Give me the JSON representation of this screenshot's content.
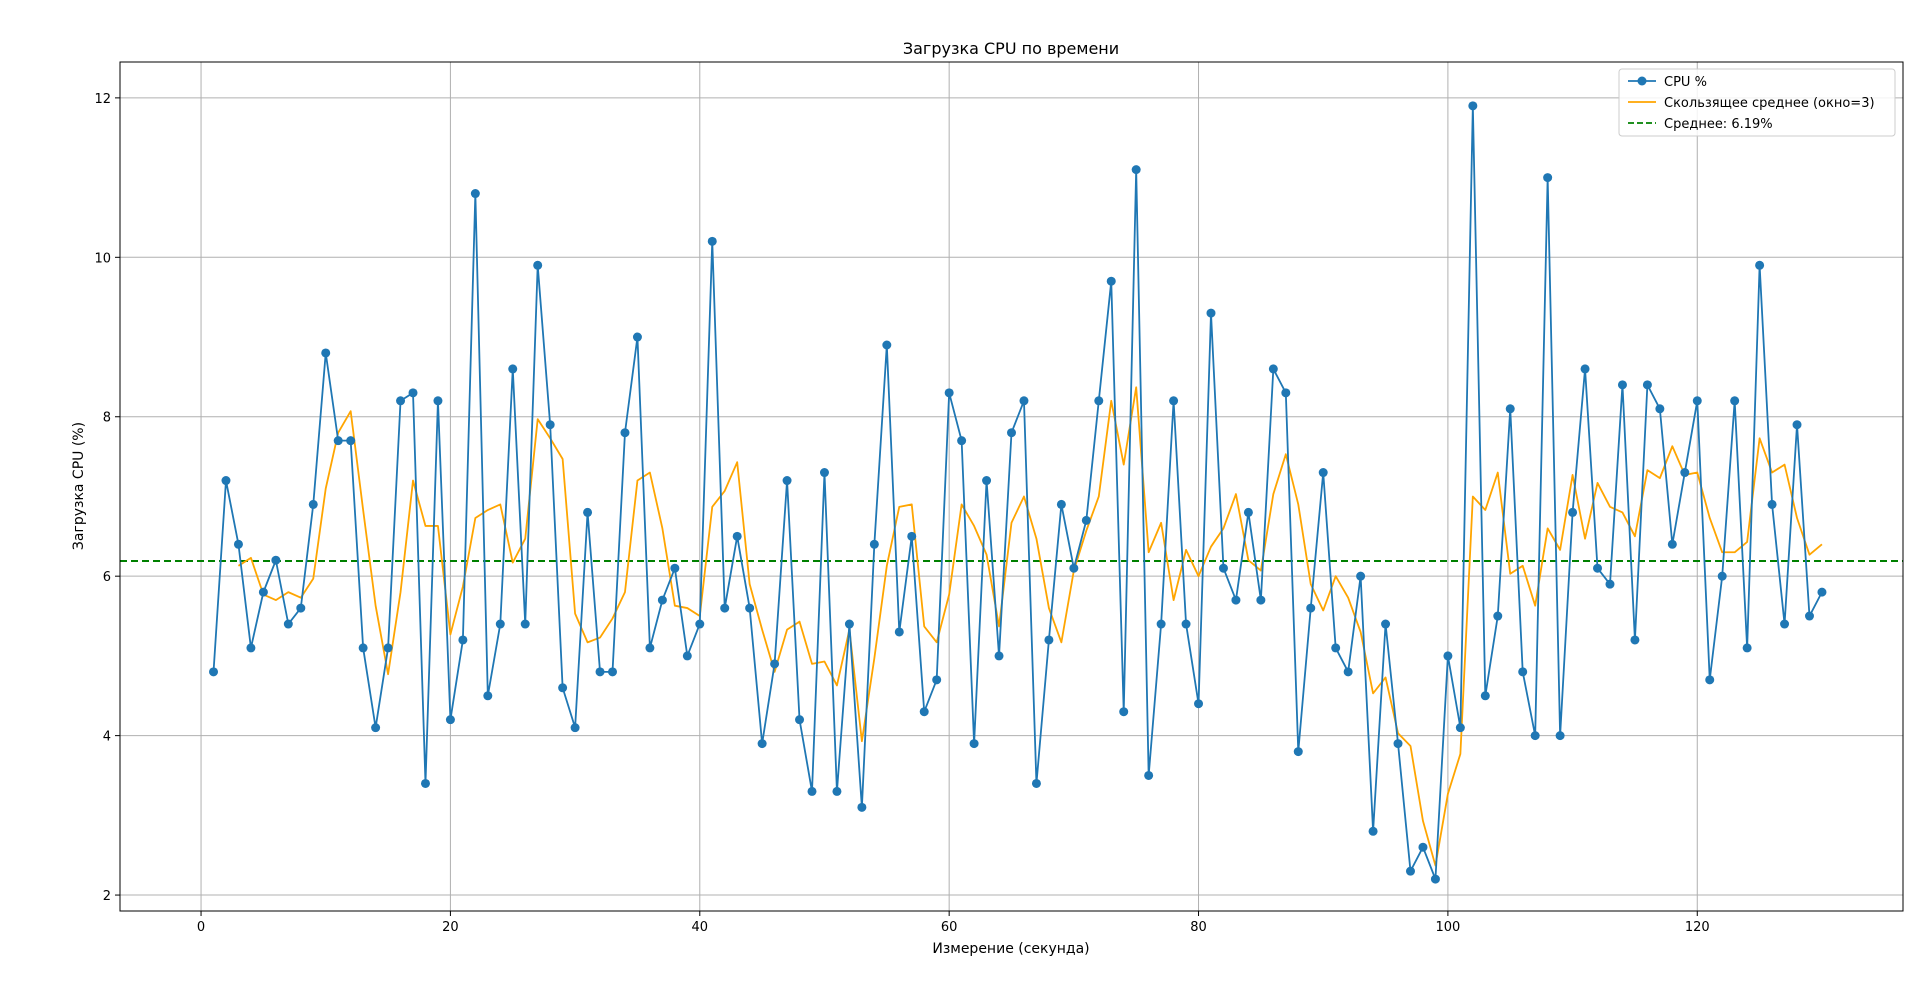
{
  "chart_data": {
    "type": "line",
    "title": "Загрузка CPU по времени",
    "xlabel": "Измерение (секунда)",
    "ylabel": "Загрузка CPU (%)",
    "xlim": [
      -6.5,
      136.5
    ],
    "ylim": [
      1.8,
      12.45
    ],
    "xticks": [
      0,
      20,
      40,
      60,
      80,
      100,
      120
    ],
    "yticks": [
      2,
      4,
      6,
      8,
      10,
      12
    ],
    "grid": true,
    "legend_position": "top-right",
    "series": [
      {
        "name": "CPU %",
        "color": "#1f77b4",
        "marker": "circle",
        "x": [
          1,
          2,
          3,
          4,
          5,
          6,
          7,
          8,
          9,
          10,
          11,
          12,
          13,
          14,
          15,
          16,
          17,
          18,
          19,
          20,
          21,
          22,
          23,
          24,
          25,
          26,
          27,
          28,
          29,
          30,
          31,
          32,
          33,
          34,
          35,
          36,
          37,
          38,
          39,
          40,
          41,
          42,
          43,
          44,
          45,
          46,
          47,
          48,
          49,
          50,
          51,
          52,
          53,
          54,
          55,
          56,
          57,
          58,
          59,
          60,
          61,
          62,
          63,
          64,
          65,
          66,
          67,
          68,
          69,
          70,
          71,
          72,
          73,
          74,
          75,
          76,
          77,
          78,
          79,
          80,
          81,
          82,
          83,
          84,
          85,
          86,
          87,
          88,
          89,
          90,
          91,
          92,
          93,
          94,
          95,
          96,
          97,
          98,
          99,
          100,
          101,
          102,
          103,
          104,
          105,
          106,
          107,
          108,
          109,
          110,
          111,
          112,
          113,
          114,
          115,
          116,
          117,
          118,
          119,
          120,
          121,
          122,
          123,
          124,
          125,
          126,
          127,
          128,
          129,
          130
        ],
        "values": [
          4.8,
          7.2,
          6.4,
          5.1,
          5.8,
          6.2,
          5.4,
          5.6,
          6.9,
          8.8,
          7.7,
          7.7,
          5.1,
          4.1,
          5.1,
          8.2,
          8.3,
          3.4,
          8.2,
          4.2,
          5.2,
          10.8,
          4.5,
          5.4,
          8.6,
          5.4,
          9.9,
          7.9,
          4.6,
          4.1,
          6.8,
          4.8,
          4.8,
          7.8,
          9.0,
          5.1,
          5.7,
          6.1,
          5.0,
          5.4,
          10.2,
          5.6,
          6.5,
          5.6,
          3.9,
          4.9,
          7.2,
          4.2,
          3.3,
          7.3,
          3.3,
          5.4,
          3.1,
          6.4,
          8.9,
          5.3,
          6.5,
          4.3,
          4.7,
          8.3,
          7.7,
          3.9,
          7.2,
          5.0,
          7.8,
          8.2,
          3.4,
          5.2,
          6.9,
          6.1,
          6.7,
          8.2,
          9.7,
          4.3,
          11.1,
          3.5,
          5.4,
          8.2,
          5.4,
          4.4,
          9.3,
          6.1,
          5.7,
          6.8,
          5.7,
          8.6,
          8.3,
          3.8,
          5.6,
          7.3,
          5.1,
          4.8,
          6.0,
          2.8,
          5.4,
          3.9,
          2.3,
          2.6,
          2.2,
          5.0,
          4.1,
          11.9,
          4.5,
          5.5,
          8.1,
          4.8,
          4.0,
          11.0,
          4.0,
          6.8,
          8.6,
          6.1,
          5.9,
          8.4,
          5.2,
          8.4,
          8.1,
          6.4,
          7.3,
          8.2,
          4.7,
          6.0,
          8.2,
          5.1,
          9.9,
          6.9,
          5.4,
          7.9,
          5.5,
          5.8
        ]
      },
      {
        "name": "Скользящее среднее (окно=3)",
        "color": "#ffa500",
        "marker": "none",
        "x": [
          3,
          4,
          5,
          6,
          7,
          8,
          9,
          10,
          11,
          12,
          13,
          14,
          15,
          16,
          17,
          18,
          19,
          20,
          21,
          22,
          23,
          24,
          25,
          26,
          27,
          28,
          29,
          30,
          31,
          32,
          33,
          34,
          35,
          36,
          37,
          38,
          39,
          40,
          41,
          42,
          43,
          44,
          45,
          46,
          47,
          48,
          49,
          50,
          51,
          52,
          53,
          54,
          55,
          56,
          57,
          58,
          59,
          60,
          61,
          62,
          63,
          64,
          65,
          66,
          67,
          68,
          69,
          70,
          71,
          72,
          73,
          74,
          75,
          76,
          77,
          78,
          79,
          80,
          81,
          82,
          83,
          84,
          85,
          86,
          87,
          88,
          89,
          90,
          91,
          92,
          93,
          94,
          95,
          96,
          97,
          98,
          99,
          100,
          101,
          102,
          103,
          104,
          105,
          106,
          107,
          108,
          109,
          110,
          111,
          112,
          113,
          114,
          115,
          116,
          117,
          118,
          119,
          120,
          121,
          122,
          123,
          124,
          125,
          126,
          127,
          128,
          129,
          130
        ],
        "values": [
          6.13,
          6.23,
          5.77,
          5.7,
          5.8,
          5.73,
          5.97,
          7.1,
          7.8,
          8.07,
          6.83,
          5.63,
          4.77,
          5.8,
          7.2,
          6.63,
          6.63,
          5.27,
          5.87,
          6.73,
          6.83,
          6.9,
          6.17,
          6.47,
          7.97,
          7.73,
          7.47,
          5.53,
          5.17,
          5.23,
          5.47,
          5.8,
          7.2,
          7.3,
          6.6,
          5.63,
          5.6,
          5.5,
          6.87,
          7.07,
          7.43,
          5.9,
          5.33,
          4.8,
          5.33,
          5.43,
          4.9,
          4.93,
          4.63,
          5.33,
          3.93,
          4.97,
          6.13,
          6.87,
          6.9,
          5.37,
          5.17,
          5.77,
          6.9,
          6.63,
          6.27,
          5.37,
          6.67,
          7.0,
          6.47,
          5.6,
          5.17,
          6.07,
          6.57,
          7.0,
          8.2,
          7.4,
          8.37,
          6.3,
          6.67,
          5.7,
          6.33,
          6.0,
          6.37,
          6.6,
          7.03,
          6.2,
          6.07,
          7.03,
          7.53,
          6.9,
          5.9,
          5.57,
          6.0,
          5.73,
          5.3,
          4.53,
          4.73,
          4.03,
          3.87,
          2.93,
          2.37,
          3.27,
          3.77,
          7.0,
          6.83,
          7.3,
          6.03,
          6.13,
          5.63,
          6.6,
          6.33,
          7.27,
          6.47,
          7.17,
          6.87,
          6.8,
          6.5,
          7.33,
          7.23,
          7.63,
          7.27,
          7.3,
          6.73,
          6.3,
          6.3,
          6.43,
          7.73,
          7.3,
          7.4,
          6.73,
          6.27,
          6.4
        ]
      },
      {
        "name": "Среднее: 6.19%",
        "color": "#008000",
        "marker": "none",
        "style": "dashed",
        "y_constant": 6.19
      }
    ]
  }
}
